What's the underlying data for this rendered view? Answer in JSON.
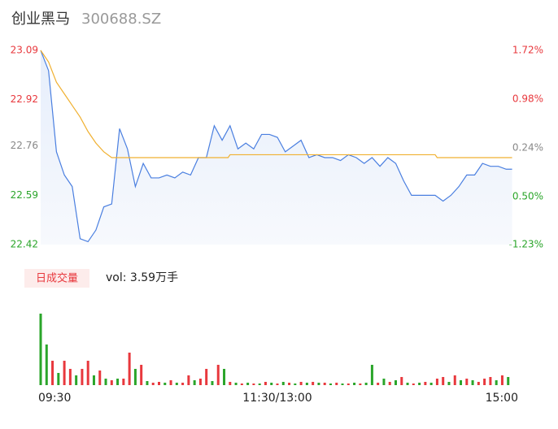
{
  "chart_data": {
    "type": "stock-intraday",
    "title": "创业黑马",
    "subtitle": "300688.SZ",
    "xlim": [
      0,
      240
    ],
    "xticks": [
      {
        "value": 0,
        "label": "09:30"
      },
      {
        "value": 120,
        "label": "11:30/13:00"
      },
      {
        "value": 240,
        "label": "15:00"
      }
    ],
    "ylim": [
      22.42,
      23.09
    ],
    "yticks": [
      23.09,
      22.92,
      22.76,
      22.59,
      22.42
    ],
    "ytick_colors": [
      "#e8383d",
      "#e8383d",
      "#888888",
      "#2aa52a",
      "#2aa52a"
    ],
    "y2lim": [
      -1.23,
      1.72
    ],
    "y2ticks": [
      {
        "value": 1.72,
        "label": "1.72%"
      },
      {
        "value": 0.98,
        "label": "0.98%"
      },
      {
        "value": 0.24,
        "label": "0.24%"
      },
      {
        "value": -0.5,
        "label": "-0.50%"
      },
      {
        "value": -1.23,
        "label": "-1.23%"
      }
    ],
    "series": [
      {
        "color": "#4a7fe0",
        "x": [
          0,
          4,
          8,
          12,
          16,
          20,
          24,
          28,
          32,
          36,
          40,
          44,
          48,
          52,
          56,
          60,
          64,
          68,
          72,
          76,
          80,
          84,
          88,
          92,
          96,
          100,
          104,
          108,
          112,
          116,
          120,
          124,
          128,
          132,
          136,
          140,
          144,
          148,
          152,
          156,
          160,
          164,
          168,
          172,
          176,
          180,
          184,
          188,
          192,
          196,
          200,
          204,
          208,
          212,
          216,
          220,
          224,
          228,
          232,
          236,
          239
        ],
        "values": [
          23.09,
          23.02,
          22.74,
          22.66,
          22.62,
          22.44,
          22.43,
          22.47,
          22.55,
          22.56,
          22.82,
          22.75,
          22.62,
          22.7,
          22.65,
          22.65,
          22.66,
          22.65,
          22.67,
          22.66,
          22.72,
          22.72,
          22.83,
          22.78,
          22.83,
          22.75,
          22.77,
          22.75,
          22.8,
          22.8,
          22.79,
          22.74,
          22.76,
          22.78,
          22.72,
          22.73,
          22.72,
          22.72,
          22.71,
          22.73,
          22.72,
          22.7,
          22.72,
          22.69,
          22.72,
          22.7,
          22.64,
          22.59,
          22.59,
          22.59,
          22.59,
          22.57,
          22.59,
          22.62,
          22.66,
          22.66,
          22.7,
          22.69,
          22.69,
          22.68,
          22.68
        ]
      },
      {
        "color": "#f0b030",
        "x": [
          0,
          4,
          8,
          12,
          16,
          20,
          24,
          28,
          32,
          36,
          95,
          96,
          200,
          201,
          239
        ],
        "values": [
          23.09,
          23.05,
          22.98,
          22.94,
          22.9,
          22.86,
          22.81,
          22.77,
          22.74,
          22.72,
          22.72,
          22.73,
          22.73,
          22.72,
          22.72
        ]
      }
    ],
    "volume": {
      "button": "日成交量",
      "label": "vol: 3.59万手",
      "ylim": [
        0,
        90
      ],
      "x": [
        0,
        3,
        6,
        9,
        12,
        15,
        18,
        21,
        24,
        27,
        30,
        33,
        36,
        39,
        42,
        45,
        48,
        51,
        54,
        57,
        60,
        63,
        66,
        69,
        72,
        75,
        78,
        81,
        84,
        87,
        90,
        93,
        96,
        99,
        102,
        105,
        108,
        111,
        114,
        117,
        120,
        123,
        126,
        129,
        132,
        135,
        138,
        141,
        144,
        147,
        150,
        153,
        156,
        159,
        162,
        165,
        168,
        171,
        174,
        177,
        180,
        183,
        186,
        189,
        192,
        195,
        198,
        201,
        204,
        207,
        210,
        213,
        216,
        219,
        222,
        225,
        228,
        231,
        234,
        237
      ],
      "values": [
        88,
        50,
        30,
        15,
        30,
        20,
        12,
        20,
        30,
        12,
        18,
        8,
        6,
        8,
        8,
        40,
        20,
        25,
        5,
        3,
        4,
        3,
        6,
        3,
        3,
        12,
        6,
        8,
        20,
        5,
        25,
        20,
        4,
        3,
        2,
        3,
        2,
        2,
        4,
        3,
        2,
        4,
        3,
        2,
        4,
        3,
        4,
        3,
        3,
        2,
        3,
        2,
        2,
        3,
        2,
        3,
        25,
        3,
        8,
        4,
        6,
        10,
        3,
        2,
        3,
        4,
        3,
        8,
        10,
        4,
        12,
        6,
        8,
        6,
        4,
        8,
        10,
        6,
        12,
        10
      ],
      "colors": [
        "#2aa52a",
        "#2aa52a",
        "#e8383d",
        "#2aa52a",
        "#e8383d",
        "#e8383d",
        "#2aa52a",
        "#e8383d",
        "#e8383d",
        "#2aa52a",
        "#e8383d",
        "#2aa52a",
        "#e8383d",
        "#2aa52a",
        "#e8383d",
        "#e8383d",
        "#2aa52a",
        "#e8383d",
        "#2aa52a",
        "#e8383d",
        "#e8383d",
        "#2aa52a",
        "#e8383d",
        "#2aa52a",
        "#e8383d",
        "#e8383d",
        "#2aa52a",
        "#e8383d",
        "#e8383d",
        "#2aa52a",
        "#e8383d",
        "#2aa52a",
        "#e8383d",
        "#2aa52a",
        "#e8383d",
        "#2aa52a",
        "#e8383d",
        "#2aa52a",
        "#e8383d",
        "#2aa52a",
        "#e8383d",
        "#2aa52a",
        "#e8383d",
        "#2aa52a",
        "#e8383d",
        "#2aa52a",
        "#e8383d",
        "#2aa52a",
        "#e8383d",
        "#2aa52a",
        "#e8383d",
        "#2aa52a",
        "#e8383d",
        "#2aa52a",
        "#e8383d",
        "#2aa52a",
        "#2aa52a",
        "#e8383d",
        "#2aa52a",
        "#e8383d",
        "#2aa52a",
        "#e8383d",
        "#2aa52a",
        "#e8383d",
        "#2aa52a",
        "#e8383d",
        "#2aa52a",
        "#e8383d",
        "#e8383d",
        "#2aa52a",
        "#e8383d",
        "#2aa52a",
        "#e8383d",
        "#2aa52a",
        "#e8383d",
        "#e8383d",
        "#e8383d",
        "#2aa52a",
        "#e8383d",
        "#2aa52a"
      ]
    }
  }
}
